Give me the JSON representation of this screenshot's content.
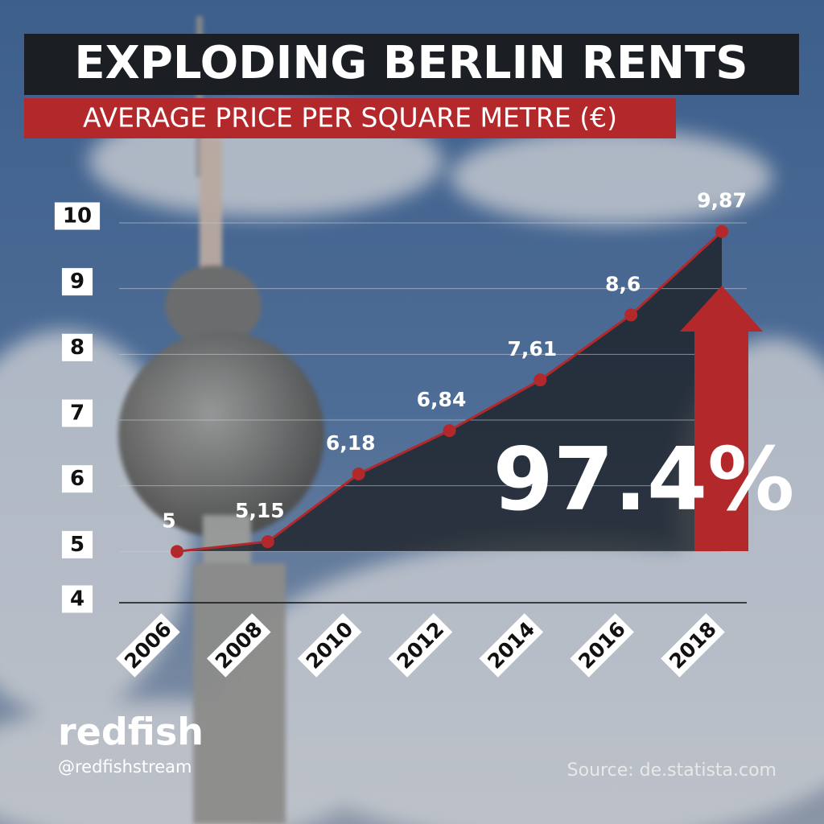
{
  "chart_data": {
    "type": "line",
    "title": "EXPLODING BERLIN RENTS",
    "subtitle": "AVERAGE PRICE PER SQUARE METRE (€)",
    "categories": [
      "2006",
      "2008",
      "2010",
      "2012",
      "2014",
      "2016",
      "2018"
    ],
    "values": [
      5,
      5.15,
      6.18,
      6.84,
      7.61,
      8.6,
      9.87
    ],
    "value_labels": [
      "5",
      "5,15",
      "6,18",
      "6,84",
      "7,61",
      "8,6",
      "9,87"
    ],
    "color": "#b3282b",
    "ylim": [
      4,
      10
    ],
    "yticks": [
      4,
      5,
      6,
      7,
      8,
      9,
      10
    ],
    "grid": true,
    "annotation": "97.4%",
    "brand": "redfish",
    "handle": "@redfishstream",
    "source": "Source: de.statista.com"
  }
}
